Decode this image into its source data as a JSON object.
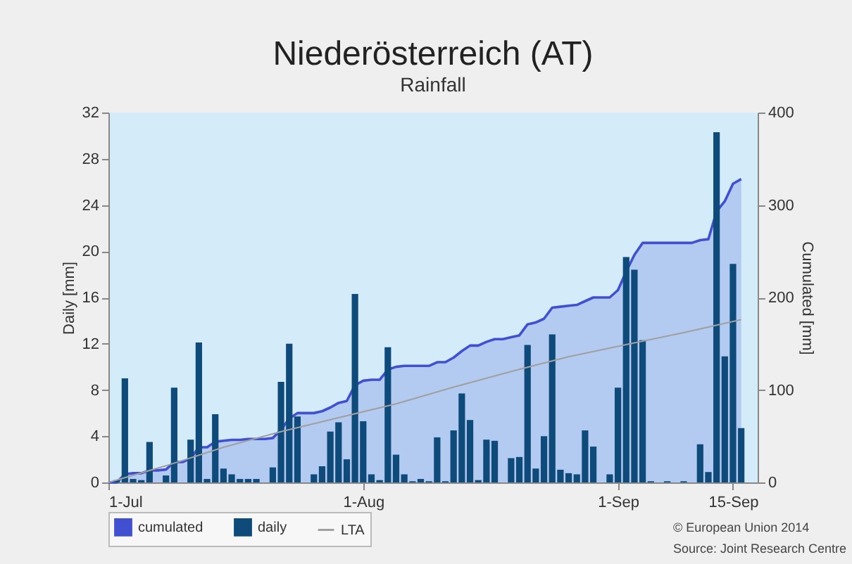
{
  "chart_data": {
    "type": "bar",
    "title": "Niederösterreich (AT)",
    "subtitle": "Rainfall",
    "ylabel": "Daily [mm]",
    "y2label": "Cumulated [mm]",
    "x": [
      "--07-01",
      "--07-02",
      "--07-03",
      "--07-04",
      "--07-05",
      "--07-06",
      "--07-07",
      "--07-08",
      "--07-09",
      "--07-10",
      "--07-11",
      "--07-12",
      "--07-13",
      "--07-14",
      "--07-15",
      "--07-16",
      "--07-17",
      "--07-18",
      "--07-19",
      "--07-20",
      "--07-21",
      "--07-22",
      "--07-23",
      "--07-24",
      "--07-25",
      "--07-26",
      "--07-27",
      "--07-28",
      "--07-29",
      "--07-30",
      "--07-31",
      "--08-01",
      "--08-02",
      "--08-03",
      "--08-04",
      "--08-05",
      "--08-06",
      "--08-07",
      "--08-08",
      "--08-09",
      "--08-10",
      "--08-11",
      "--08-12",
      "--08-13",
      "--08-14",
      "--08-15",
      "--08-16",
      "--08-17",
      "--08-18",
      "--08-19",
      "--08-20",
      "--08-21",
      "--08-22",
      "--08-23",
      "--08-24",
      "--08-25",
      "--08-26",
      "--08-27",
      "--08-28",
      "--08-29",
      "--08-30",
      "--08-31",
      "--09-01",
      "--09-02",
      "--09-03",
      "--09-04",
      "--09-05",
      "--09-06",
      "--09-07",
      "--09-08",
      "--09-09",
      "--09-10",
      "--09-11",
      "--09-12",
      "--09-13",
      "--09-14",
      "--09-15",
      "--09-16"
    ],
    "series": [
      {
        "name": "cumulated",
        "type": "area",
        "axis": "y2",
        "color": "#4050d0",
        "values": [
          0,
          0,
          9,
          10,
          10,
          13,
          13,
          14,
          22,
          22,
          26,
          38,
          38,
          44,
          45,
          46,
          46,
          47,
          47,
          47,
          48,
          57,
          69,
          75,
          75,
          75,
          77,
          81,
          86,
          88,
          105,
          110,
          111,
          111,
          122,
          125,
          126,
          126,
          126,
          126,
          130,
          130,
          135,
          142,
          148,
          148,
          152,
          155,
          155,
          157,
          159,
          171,
          173,
          177,
          189,
          190,
          191,
          192,
          196,
          200,
          200,
          200,
          208,
          228,
          246,
          259,
          259,
          259,
          259,
          259,
          259,
          259,
          262,
          263,
          293,
          304,
          323,
          328
        ]
      },
      {
        "name": "daily",
        "color": "#0e4a7a",
        "values": [
          0,
          0.2,
          9.0,
          0.3,
          0.2,
          3.5,
          0,
          0.6,
          8.2,
          0,
          3.7,
          12.1,
          0.3,
          5.9,
          1.2,
          0.7,
          0.3,
          0.3,
          0.3,
          0,
          1.3,
          8.7,
          12.0,
          5.7,
          0,
          0.7,
          1.4,
          4.4,
          5.2,
          2.0,
          16.3,
          5.3,
          0.7,
          0.2,
          11.7,
          2.4,
          0.7,
          0.1,
          0.3,
          0.1,
          3.9,
          0.1,
          4.5,
          7.7,
          5.4,
          0.2,
          3.7,
          3.6,
          0,
          2.1,
          2.2,
          11.9,
          1.2,
          4.0,
          12.8,
          1.1,
          0.8,
          0.7,
          4.5,
          3.1,
          0,
          0.7,
          8.2,
          19.5,
          18.4,
          12.3,
          0.1,
          0,
          0.1,
          0,
          0.1,
          0,
          3.3,
          0.9,
          30.3,
          10.9,
          18.9,
          4.7
        ]
      },
      {
        "name": "LTA",
        "type": "line",
        "axis": "y2",
        "color": "#a0a0a0",
        "x": [
          "--07-01",
          "--07-08",
          "--07-15",
          "--07-22",
          "--07-29",
          "--08-05",
          "--08-12",
          "--08-19",
          "--08-26",
          "--09-02",
          "--09-09",
          "--09-16"
        ],
        "values": [
          0,
          18,
          38,
          55,
          70,
          85,
          103,
          120,
          136,
          149,
          162,
          176
        ]
      }
    ],
    "xlim": [
      "--07-01",
      "--09-18"
    ],
    "xticks": [
      {
        "value": "--07-01",
        "label": "1-Jul"
      },
      {
        "value": "--08-01",
        "label": "1-Aug"
      },
      {
        "value": "--09-01",
        "label": "1-Sep"
      },
      {
        "value": "--09-15",
        "label": "15-Sep"
      }
    ],
    "ylim": [
      0,
      32
    ],
    "yticks": [
      0,
      4,
      8,
      12,
      16,
      20,
      24,
      28,
      32
    ],
    "y2lim": [
      0,
      400
    ],
    "y2ticks": [
      0,
      100,
      200,
      300,
      400
    ],
    "legend": "bottom",
    "annotations": [
      "© European Union 2014",
      "Source: Joint Research Centre"
    ]
  }
}
